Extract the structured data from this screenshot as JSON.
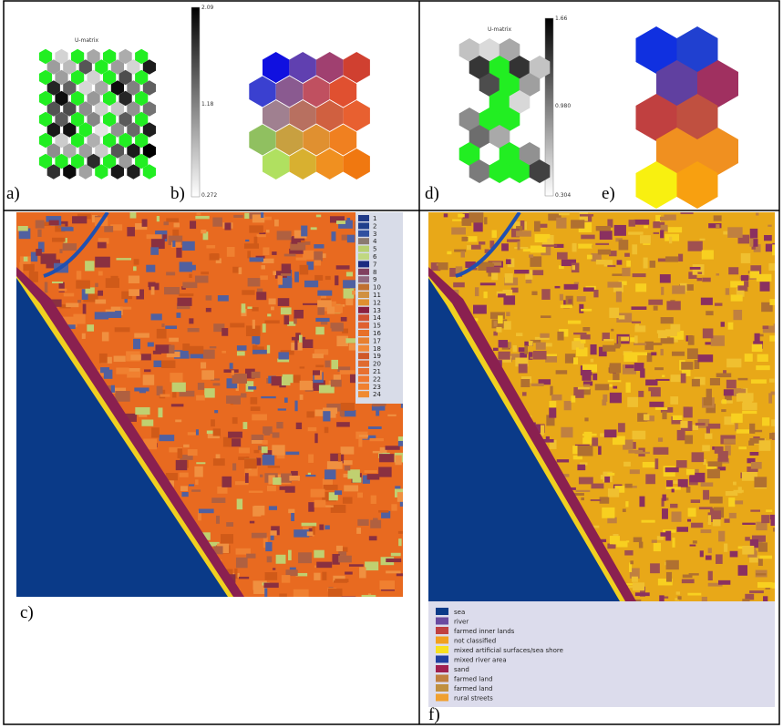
{
  "panels": {
    "a": {
      "label": "a)",
      "title": "U-matrix",
      "colorbar_ticks": [
        "2.09",
        "1.18",
        "0.272"
      ]
    },
    "b": {
      "label": "b)"
    },
    "c": {
      "label": "c)",
      "legend": [
        "1",
        "2",
        "3",
        "4",
        "5",
        "6",
        "7",
        "8",
        "9",
        "10",
        "11",
        "12",
        "13",
        "14",
        "15",
        "16",
        "17",
        "18",
        "19",
        "20",
        "21",
        "22",
        "23",
        "24"
      ]
    },
    "d": {
      "label": "d)",
      "title": "U-matrix",
      "colorbar_ticks": [
        "1.66",
        "0.980",
        "0.304"
      ]
    },
    "e": {
      "label": "e)"
    },
    "f": {
      "label": "f)",
      "legend": [
        "sea",
        "river",
        "farmed inner lands",
        "not classified",
        "mixed artificial surfaces/sea shore",
        "mixed river area",
        "sand",
        "farmed land",
        "farmed land",
        "rural streets"
      ]
    }
  }
}
